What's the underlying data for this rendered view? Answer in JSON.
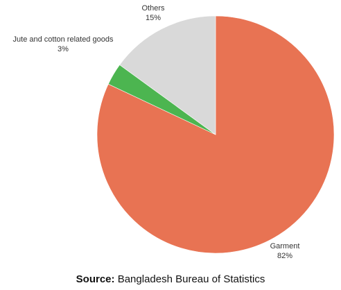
{
  "chart_data": {
    "type": "pie",
    "slices": [
      {
        "label": "Garment",
        "value": 82,
        "value_label": "82%",
        "color": "#e87353"
      },
      {
        "label": "Jute and cotton related goods",
        "value": 3,
        "value_label": "3%",
        "color": "#4cb550"
      },
      {
        "label": "Others",
        "value": 15,
        "value_label": "15%",
        "color": "#d9d9d9"
      }
    ],
    "start_angle": "12 o'clock",
    "direction": "clockwise",
    "legend": "none"
  },
  "source": {
    "label": "Source:",
    "text": " Bangladesh Bureau of Statistics"
  }
}
